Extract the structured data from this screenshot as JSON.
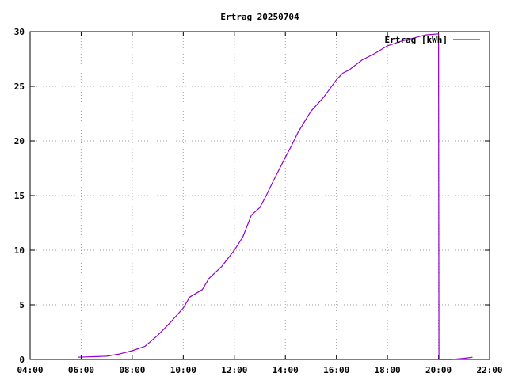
{
  "chart_data": {
    "type": "line",
    "title": "Ertrag 20250704",
    "xlabel": "",
    "ylabel": "",
    "x_unit": "time of day",
    "xlim": [
      "04:00",
      "22:00"
    ],
    "ylim": [
      0,
      30
    ],
    "x_ticks": [
      "04:00",
      "06:00",
      "08:00",
      "10:00",
      "12:00",
      "14:00",
      "16:00",
      "18:00",
      "20:00",
      "22:00"
    ],
    "y_ticks": [
      0,
      5,
      10,
      15,
      20,
      25,
      30
    ],
    "grid": true,
    "legend_position": "top-right",
    "series": [
      {
        "name": "Ertrag [kWh]",
        "color": "#9400d3",
        "x": [
          "05:52",
          "07:00",
          "07:30",
          "08:00",
          "08:30",
          "09:00",
          "09:30",
          "10:00",
          "10:15",
          "10:45",
          "11:00",
          "11:30",
          "12:00",
          "12:20",
          "12:40",
          "13:00",
          "13:15",
          "13:30",
          "14:00",
          "14:15",
          "14:30",
          "15:00",
          "15:30",
          "16:00",
          "16:15",
          "16:30",
          "17:00",
          "17:30",
          "18:00",
          "18:30",
          "19:00",
          "19:30",
          "20:00",
          "20:01",
          "20:02",
          "20:30",
          "21:00",
          "21:20"
        ],
        "y": [
          0.2,
          0.3,
          0.5,
          0.8,
          1.2,
          2.2,
          3.4,
          4.7,
          5.7,
          6.4,
          7.4,
          8.5,
          10.0,
          11.2,
          13.2,
          13.9,
          15.0,
          16.2,
          18.5,
          19.6,
          20.8,
          22.7,
          24.0,
          25.6,
          26.2,
          26.5,
          27.4,
          28.0,
          28.7,
          29.1,
          29.4,
          29.7,
          29.8,
          0.0,
          0.0,
          0.0,
          0.1,
          0.2
        ]
      }
    ]
  }
}
